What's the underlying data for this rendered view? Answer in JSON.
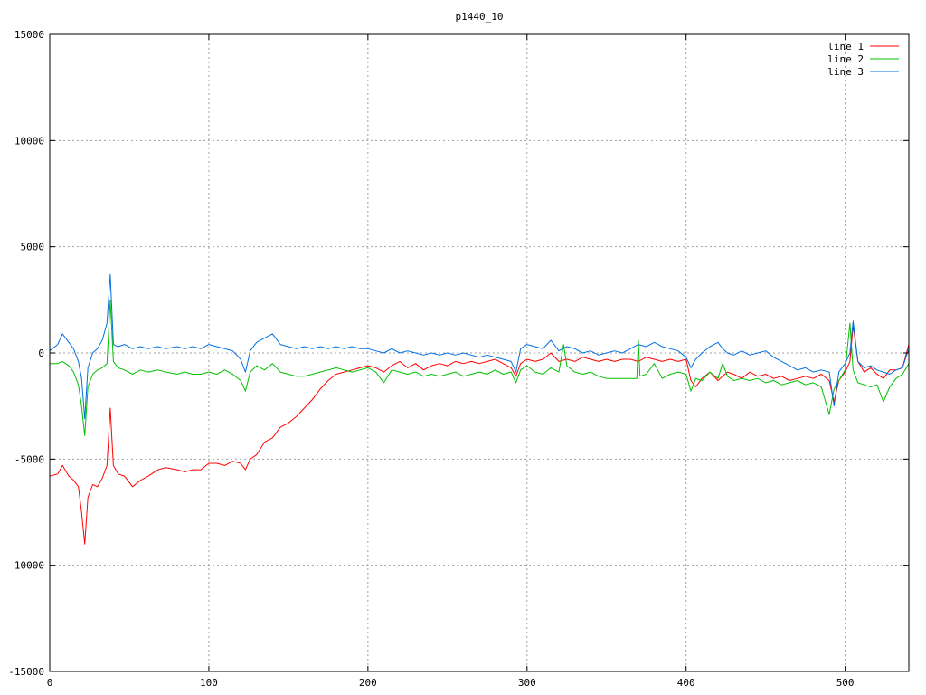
{
  "chart_data": {
    "type": "line",
    "title": "p1440_10",
    "xlabel": "",
    "ylabel": "",
    "xlim": [
      0,
      540
    ],
    "ylim": [
      -15000,
      15000
    ],
    "x_ticks": [
      0,
      100,
      200,
      300,
      400,
      500
    ],
    "y_ticks": [
      -15000,
      -10000,
      -5000,
      0,
      5000,
      10000,
      15000
    ],
    "grid": true,
    "legend_position": "top-right",
    "series": [
      {
        "name": "line 1",
        "color": "#ff0000",
        "x": [
          0,
          5,
          8,
          12,
          15,
          18,
          20,
          22,
          24,
          27,
          30,
          33,
          36,
          38,
          40,
          43,
          47,
          52,
          57,
          62,
          68,
          73,
          80,
          85,
          90,
          95,
          100,
          105,
          110,
          115,
          120,
          123,
          126,
          130,
          135,
          140,
          145,
          150,
          155,
          160,
          165,
          170,
          175,
          180,
          185,
          190,
          195,
          200,
          205,
          210,
          215,
          220,
          225,
          230,
          235,
          240,
          245,
          250,
          255,
          260,
          265,
          270,
          275,
          280,
          285,
          290,
          293,
          296,
          300,
          305,
          310,
          315,
          320,
          325,
          330,
          335,
          340,
          345,
          350,
          355,
          360,
          365,
          370,
          375,
          380,
          385,
          390,
          395,
          400,
          403,
          406,
          410,
          415,
          420,
          423,
          426,
          430,
          435,
          440,
          445,
          450,
          455,
          460,
          465,
          470,
          475,
          480,
          485,
          490,
          493,
          496,
          500,
          503,
          505,
          508,
          512,
          516,
          520,
          524,
          528,
          532,
          536,
          540
        ],
        "y": [
          -5800,
          -5700,
          -5300,
          -5800,
          -6000,
          -6300,
          -7500,
          -9000,
          -6800,
          -6200,
          -6300,
          -5900,
          -5300,
          -2600,
          -5300,
          -5700,
          -5800,
          -6300,
          -6000,
          -5800,
          -5500,
          -5400,
          -5500,
          -5600,
          -5500,
          -5500,
          -5200,
          -5200,
          -5300,
          -5100,
          -5200,
          -5500,
          -5000,
          -4800,
          -4200,
          -4000,
          -3500,
          -3300,
          -3000,
          -2600,
          -2200,
          -1700,
          -1300,
          -1000,
          -900,
          -800,
          -700,
          -600,
          -700,
          -900,
          -600,
          -400,
          -700,
          -500,
          -800,
          -600,
          -500,
          -600,
          -400,
          -500,
          -400,
          -500,
          -400,
          -300,
          -500,
          -700,
          -1100,
          -500,
          -300,
          -400,
          -300,
          0,
          -400,
          -300,
          -400,
          -200,
          -300,
          -400,
          -300,
          -400,
          -300,
          -300,
          -400,
          -200,
          -300,
          -400,
          -300,
          -400,
          -300,
          -1300,
          -1600,
          -1200,
          -900,
          -1300,
          -1100,
          -900,
          -1000,
          -1200,
          -900,
          -1100,
          -1000,
          -1200,
          -1100,
          -1300,
          -1200,
          -1100,
          -1200,
          -1000,
          -1300,
          -2300,
          -1300,
          -900,
          -400,
          1300,
          -400,
          -900,
          -700,
          -1000,
          -1200,
          -800,
          -800,
          -700,
          400
        ]
      },
      {
        "name": "line 2",
        "color": "#00c000",
        "x": [
          0,
          5,
          8,
          12,
          15,
          18,
          20,
          22,
          24,
          27,
          30,
          33,
          36,
          38,
          40,
          43,
          47,
          52,
          57,
          62,
          68,
          73,
          80,
          85,
          90,
          95,
          100,
          105,
          110,
          115,
          120,
          123,
          126,
          130,
          135,
          140,
          145,
          150,
          155,
          160,
          165,
          170,
          175,
          180,
          185,
          190,
          195,
          200,
          205,
          210,
          215,
          220,
          225,
          230,
          235,
          240,
          245,
          250,
          255,
          260,
          265,
          270,
          275,
          280,
          285,
          290,
          293,
          296,
          300,
          305,
          310,
          315,
          320,
          323,
          325,
          330,
          335,
          340,
          345,
          350,
          355,
          360,
          365,
          369,
          370,
          371,
          375,
          380,
          385,
          390,
          395,
          400,
          403,
          406,
          410,
          415,
          420,
          423,
          426,
          430,
          435,
          440,
          445,
          450,
          455,
          460,
          465,
          470,
          475,
          480,
          485,
          490,
          493,
          496,
          500,
          503,
          505,
          508,
          512,
          516,
          520,
          524,
          528,
          532,
          536,
          540
        ],
        "y": [
          -500,
          -500,
          -400,
          -600,
          -900,
          -1500,
          -2500,
          -3900,
          -1600,
          -1000,
          -800,
          -700,
          -500,
          2500,
          -400,
          -700,
          -800,
          -1000,
          -800,
          -900,
          -800,
          -900,
          -1000,
          -900,
          -1000,
          -1000,
          -900,
          -1000,
          -800,
          -1000,
          -1300,
          -1800,
          -900,
          -600,
          -800,
          -500,
          -900,
          -1000,
          -1100,
          -1100,
          -1000,
          -900,
          -800,
          -700,
          -800,
          -900,
          -800,
          -700,
          -900,
          -1400,
          -800,
          -900,
          -1000,
          -900,
          -1100,
          -1000,
          -1100,
          -1000,
          -900,
          -1100,
          -1000,
          -900,
          -1000,
          -800,
          -1000,
          -900,
          -1400,
          -800,
          -600,
          -900,
          -1000,
          -700,
          -900,
          400,
          -600,
          -900,
          -1000,
          -900,
          -1100,
          -1200,
          -1200,
          -1200,
          -1200,
          -1200,
          600,
          -1100,
          -1000,
          -500,
          -1200,
          -1000,
          -900,
          -1000,
          -1800,
          -1200,
          -1300,
          -900,
          -1200,
          -500,
          -1100,
          -1300,
          -1200,
          -1300,
          -1200,
          -1400,
          -1300,
          -1500,
          -1400,
          -1300,
          -1500,
          -1400,
          -1600,
          -2900,
          -1700,
          -1300,
          -800,
          1400,
          -800,
          -1400,
          -1500,
          -1600,
          -1500,
          -2300,
          -1600,
          -1200,
          -1000,
          -500
        ]
      },
      {
        "name": "line 3",
        "color": "#0070e0",
        "x": [
          0,
          5,
          8,
          12,
          15,
          18,
          20,
          22,
          24,
          27,
          30,
          33,
          36,
          38,
          40,
          43,
          47,
          52,
          57,
          62,
          68,
          73,
          80,
          85,
          90,
          95,
          100,
          105,
          110,
          115,
          120,
          123,
          126,
          130,
          135,
          140,
          145,
          150,
          155,
          160,
          165,
          170,
          175,
          180,
          185,
          190,
          195,
          200,
          205,
          210,
          215,
          220,
          225,
          230,
          235,
          240,
          245,
          250,
          255,
          260,
          265,
          270,
          275,
          280,
          285,
          290,
          293,
          296,
          300,
          305,
          310,
          315,
          320,
          325,
          330,
          335,
          340,
          345,
          350,
          355,
          360,
          365,
          370,
          375,
          380,
          385,
          390,
          395,
          400,
          403,
          406,
          410,
          415,
          420,
          423,
          426,
          430,
          435,
          440,
          445,
          450,
          455,
          460,
          465,
          470,
          475,
          480,
          485,
          490,
          493,
          496,
          500,
          503,
          505,
          508,
          512,
          516,
          520,
          524,
          528,
          532,
          536,
          540
        ],
        "y": [
          100,
          400,
          900,
          500,
          200,
          -400,
          -1200,
          -3100,
          -700,
          0,
          200,
          600,
          1400,
          3700,
          400,
          300,
          400,
          200,
          300,
          200,
          300,
          200,
          300,
          200,
          300,
          200,
          400,
          300,
          200,
          100,
          -300,
          -900,
          100,
          500,
          700,
          900,
          400,
          300,
          200,
          300,
          200,
          300,
          200,
          300,
          200,
          300,
          200,
          200,
          100,
          0,
          200,
          0,
          100,
          0,
          -100,
          0,
          -100,
          0,
          -100,
          0,
          -100,
          -200,
          -100,
          -200,
          -300,
          -400,
          -900,
          200,
          400,
          300,
          200,
          600,
          100,
          300,
          200,
          0,
          100,
          -100,
          0,
          100,
          0,
          200,
          400,
          300,
          500,
          300,
          200,
          100,
          -200,
          -700,
          -300,
          0,
          300,
          500,
          200,
          0,
          -100,
          100,
          -100,
          0,
          100,
          -200,
          -400,
          -600,
          -800,
          -700,
          -900,
          -800,
          -900,
          -2500,
          -900,
          -500,
          0,
          1500,
          -400,
          -700,
          -600,
          -800,
          -900,
          -1000,
          -800,
          -700,
          200
        ]
      }
    ]
  }
}
